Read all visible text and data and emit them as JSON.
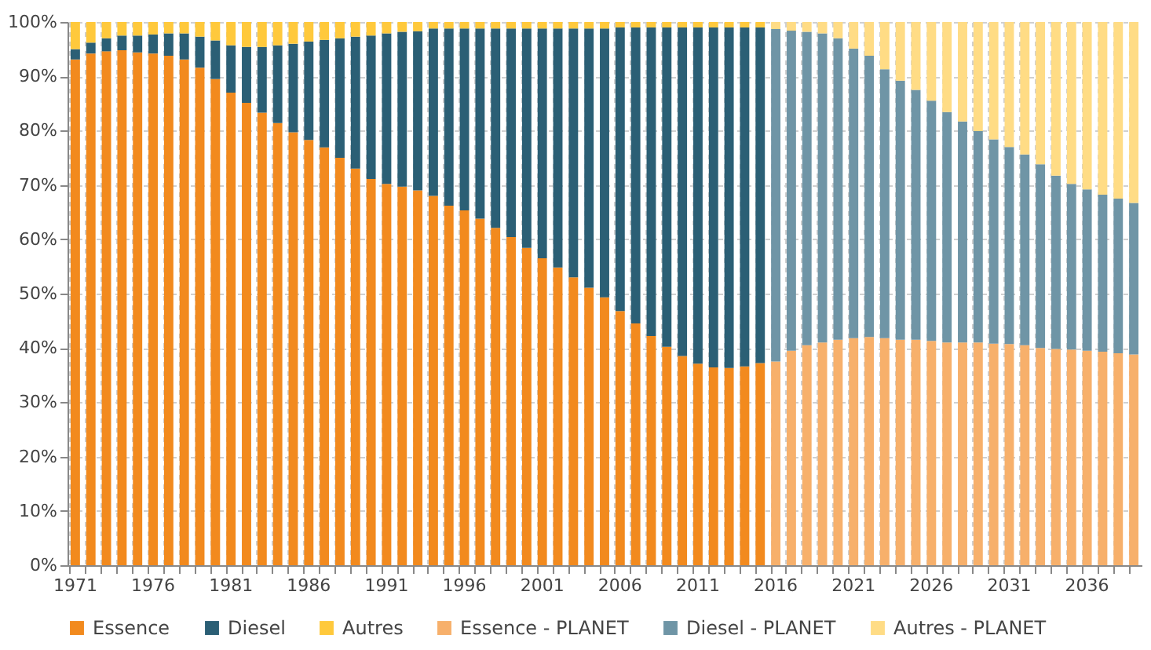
{
  "chart_data": {
    "type": "bar",
    "stacked": true,
    "grid": true,
    "legend": "bottom",
    "categories": [
      "1971",
      null,
      null,
      null,
      null,
      "1976",
      null,
      null,
      null,
      null,
      "1981",
      null,
      null,
      null,
      null,
      "1986",
      null,
      null,
      null,
      null,
      "1991",
      null,
      null,
      null,
      null,
      "1996",
      null,
      null,
      null,
      null,
      "2001",
      null,
      null,
      null,
      null,
      "2006",
      null,
      null,
      null,
      null,
      "2011",
      null,
      null,
      null,
      null,
      "2016",
      null,
      null,
      null,
      null,
      "2021",
      null,
      null,
      null,
      null,
      "2026",
      null,
      null,
      null,
      null,
      "2031",
      null,
      null,
      null,
      null,
      "2036",
      null,
      null,
      null
    ],
    "ylim": [
      0,
      100
    ],
    "yticks": [
      {
        "value": 0,
        "label": "0%"
      },
      {
        "value": 10,
        "label": "10%"
      },
      {
        "value": 20,
        "label": "20%"
      },
      {
        "value": 30,
        "label": "30%"
      },
      {
        "value": 40,
        "label": "40%"
      },
      {
        "value": 50,
        "label": "50%"
      },
      {
        "value": 60,
        "label": "60%"
      },
      {
        "value": 70,
        "label": "70%"
      },
      {
        "value": 80,
        "label": "80%"
      },
      {
        "value": 90,
        "label": "90%"
      },
      {
        "value": 100,
        "label": "100%"
      }
    ],
    "series": [
      {
        "name": "Essence",
        "color": "#f28a1e",
        "values": [
          93.1,
          94.2,
          94.6,
          94.8,
          94.4,
          94.2,
          93.8,
          93.1,
          91.6,
          89.5,
          87.0,
          85.1,
          83.3,
          81.4,
          79.7,
          78.3,
          76.9,
          75.0,
          73.0,
          71.1,
          70.2,
          69.7,
          69.0,
          68.0,
          66.2,
          65.3,
          63.8,
          62.1,
          60.4,
          58.4,
          56.5,
          54.8,
          53.0,
          51.1,
          49.3,
          46.8,
          44.5,
          42.2,
          40.2,
          38.5,
          37.1,
          36.4,
          36.3,
          36.6,
          37.2,
          null,
          null,
          null,
          null,
          null,
          null,
          null,
          null,
          null,
          null,
          null,
          null,
          null,
          null,
          null,
          null,
          null,
          null,
          null,
          null,
          null,
          null,
          null,
          null
        ]
      },
      {
        "name": "Diesel",
        "color": "#2b5f75",
        "values": [
          1.9,
          2.0,
          2.4,
          2.7,
          3.1,
          3.5,
          4.1,
          4.8,
          5.7,
          7.1,
          8.7,
          10.3,
          12.1,
          14.3,
          16.3,
          18.1,
          19.8,
          22.0,
          24.3,
          26.4,
          27.7,
          28.5,
          29.3,
          30.8,
          32.6,
          33.5,
          35.0,
          36.7,
          38.4,
          40.4,
          42.3,
          44.0,
          45.8,
          47.7,
          49.5,
          52.2,
          54.5,
          56.8,
          58.8,
          60.5,
          61.9,
          62.6,
          62.7,
          62.4,
          61.8,
          null,
          null,
          null,
          null,
          null,
          null,
          null,
          null,
          null,
          null,
          null,
          null,
          null,
          null,
          null,
          null,
          null,
          null,
          null,
          null,
          null,
          null,
          null,
          null
        ]
      },
      {
        "name": "Autres",
        "color": "#ffc93c",
        "values": [
          5.0,
          3.8,
          3.0,
          2.5,
          2.5,
          2.3,
          2.1,
          2.1,
          2.7,
          3.4,
          4.3,
          4.6,
          4.6,
          4.3,
          4.0,
          3.6,
          3.3,
          3.0,
          2.7,
          2.5,
          2.1,
          1.8,
          1.7,
          1.2,
          1.2,
          1.2,
          1.2,
          1.2,
          1.2,
          1.2,
          1.2,
          1.2,
          1.2,
          1.2,
          1.2,
          1.0,
          1.0,
          1.0,
          1.0,
          1.0,
          1.0,
          1.0,
          1.0,
          1.0,
          1.0,
          null,
          null,
          null,
          null,
          null,
          null,
          null,
          null,
          null,
          null,
          null,
          null,
          null,
          null,
          null,
          null,
          null,
          null,
          null,
          null,
          null,
          null,
          null,
          null
        ]
      },
      {
        "name": "Essence - PLANET",
        "color": "#f7b06b",
        "values": [
          null,
          null,
          null,
          null,
          null,
          null,
          null,
          null,
          null,
          null,
          null,
          null,
          null,
          null,
          null,
          null,
          null,
          null,
          null,
          null,
          null,
          null,
          null,
          null,
          null,
          null,
          null,
          null,
          null,
          null,
          null,
          null,
          null,
          null,
          null,
          null,
          null,
          null,
          null,
          null,
          null,
          null,
          null,
          null,
          null,
          37.5,
          39.5,
          40.5,
          41.0,
          41.5,
          41.8,
          42.0,
          41.8,
          41.5,
          41.5,
          41.3,
          41.0,
          41.0,
          41.0,
          40.8,
          40.7,
          40.5,
          40.0,
          39.8,
          39.7,
          39.5,
          39.3,
          39.0,
          38.8
        ]
      },
      {
        "name": "Diesel - PLANET",
        "color": "#6f95a6",
        "values": [
          null,
          null,
          null,
          null,
          null,
          null,
          null,
          null,
          null,
          null,
          null,
          null,
          null,
          null,
          null,
          null,
          null,
          null,
          null,
          null,
          null,
          null,
          null,
          null,
          null,
          null,
          null,
          null,
          null,
          null,
          null,
          null,
          null,
          null,
          null,
          null,
          null,
          null,
          null,
          null,
          null,
          null,
          null,
          null,
          null,
          61.2,
          58.9,
          57.7,
          56.9,
          55.5,
          53.3,
          51.8,
          49.5,
          47.7,
          46.0,
          44.2,
          42.4,
          40.7,
          38.9,
          37.6,
          36.3,
          35.1,
          33.8,
          31.9,
          30.5,
          29.7,
          28.9,
          28.5,
          27.9
        ]
      },
      {
        "name": "Autres - PLANET",
        "color": "#ffdc85",
        "values": [
          null,
          null,
          null,
          null,
          null,
          null,
          null,
          null,
          null,
          null,
          null,
          null,
          null,
          null,
          null,
          null,
          null,
          null,
          null,
          null,
          null,
          null,
          null,
          null,
          null,
          null,
          null,
          null,
          null,
          null,
          null,
          null,
          null,
          null,
          null,
          null,
          null,
          null,
          null,
          null,
          null,
          null,
          null,
          null,
          null,
          1.3,
          1.6,
          1.8,
          2.1,
          3.0,
          4.9,
          6.2,
          8.7,
          10.8,
          12.5,
          14.5,
          16.6,
          18.3,
          20.1,
          21.6,
          23.0,
          24.4,
          26.2,
          28.3,
          29.8,
          30.8,
          31.8,
          32.5,
          33.3
        ]
      }
    ]
  }
}
